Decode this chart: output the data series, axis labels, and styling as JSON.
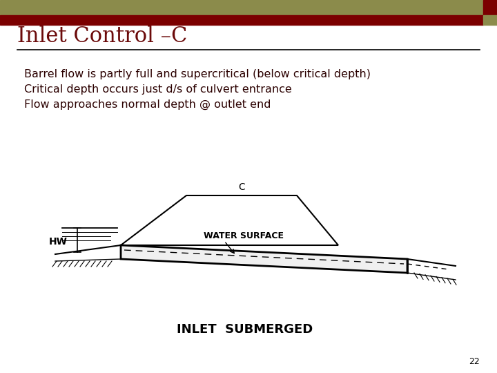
{
  "title": "Inlet Control –C",
  "title_color": "#6B0A0A",
  "title_fontsize": 22,
  "bullet1": "Barrel flow is partly full and supercritical (below critical depth)",
  "bullet2": "Critical depth occurs just d/s of culvert entrance",
  "bullet3": "Flow approaches normal depth @ outlet end",
  "bullet_color": "#2B0000",
  "bullet_fontsize": 11.5,
  "header_bar_color": "#8B8B4B",
  "header_bar2_color": "#7B0000",
  "bg_color": "#FFFFFF",
  "page_number": "22",
  "diagram_label_c": "C",
  "diagram_label_hw": "HW",
  "diagram_label_ws": "WATER SURFACE",
  "diagram_label_inlet": "INLET  SUBMERGED"
}
